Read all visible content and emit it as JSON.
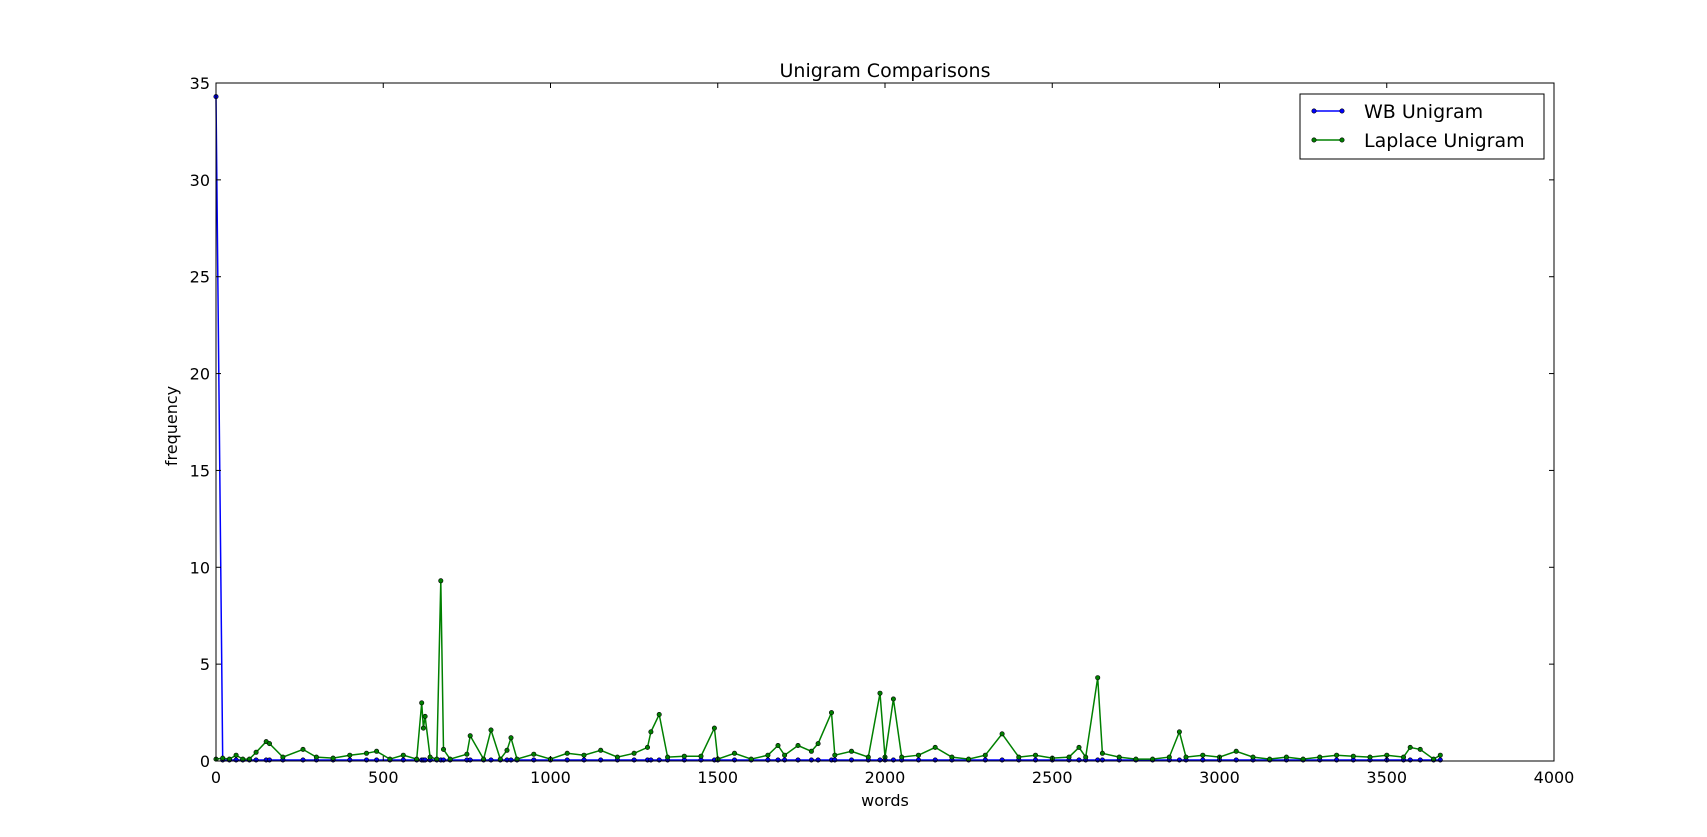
{
  "chart_data": {
    "type": "line",
    "title": "Unigram Comparisons",
    "xlabel": "words",
    "ylabel": "frequency",
    "xlim": [
      0,
      4000
    ],
    "ylim": [
      0,
      35
    ],
    "xticks": [
      0,
      500,
      1000,
      1500,
      2000,
      2500,
      3000,
      3500,
      4000
    ],
    "yticks": [
      0,
      5,
      10,
      15,
      20,
      25,
      30,
      35
    ],
    "grid": false,
    "legend_position": "top-right",
    "series": [
      {
        "name": "WB Unigram",
        "color": "#0000ff",
        "marker": "dot",
        "x": [
          0,
          20,
          40,
          60,
          80,
          100,
          120,
          150,
          160,
          200,
          260,
          300,
          350,
          400,
          450,
          480,
          520,
          560,
          600,
          615,
          620,
          625,
          640,
          660,
          672,
          680,
          700,
          750,
          760,
          800,
          822,
          850,
          870,
          882,
          900,
          950,
          1000,
          1050,
          1100,
          1150,
          1200,
          1250,
          1290,
          1300,
          1325,
          1350,
          1400,
          1450,
          1490,
          1500,
          1550,
          1600,
          1650,
          1680,
          1700,
          1740,
          1780,
          1800,
          1840,
          1850,
          1900,
          1950,
          1985,
          2000,
          2025,
          2050,
          2100,
          2150,
          2200,
          2250,
          2300,
          2350,
          2400,
          2450,
          2500,
          2550,
          2580,
          2600,
          2636,
          2650,
          2700,
          2750,
          2800,
          2850,
          2880,
          2900,
          2950,
          3000,
          3050,
          3100,
          3150,
          3200,
          3250,
          3300,
          3350,
          3400,
          3450,
          3500,
          3550,
          3570,
          3600,
          3640,
          3660
        ],
        "y": [
          34.3,
          0.05,
          0.05,
          0.05,
          0.05,
          0.05,
          0.05,
          0.05,
          0.05,
          0.05,
          0.05,
          0.05,
          0.05,
          0.05,
          0.05,
          0.05,
          0.05,
          0.05,
          0.05,
          0.05,
          0.05,
          0.05,
          0.05,
          0.05,
          0.05,
          0.05,
          0.05,
          0.05,
          0.05,
          0.05,
          0.05,
          0.05,
          0.05,
          0.05,
          0.05,
          0.05,
          0.05,
          0.05,
          0.05,
          0.05,
          0.05,
          0.05,
          0.05,
          0.05,
          0.05,
          0.05,
          0.05,
          0.05,
          0.05,
          0.05,
          0.05,
          0.05,
          0.05,
          0.05,
          0.05,
          0.05,
          0.05,
          0.05,
          0.05,
          0.05,
          0.05,
          0.05,
          0.05,
          0.05,
          0.05,
          0.05,
          0.05,
          0.05,
          0.05,
          0.05,
          0.05,
          0.05,
          0.05,
          0.05,
          0.05,
          0.05,
          0.05,
          0.05,
          0.05,
          0.05,
          0.05,
          0.05,
          0.05,
          0.05,
          0.05,
          0.05,
          0.05,
          0.05,
          0.05,
          0.05,
          0.05,
          0.05,
          0.05,
          0.05,
          0.05,
          0.05,
          0.05,
          0.05,
          0.05,
          0.05,
          0.05,
          0.05,
          0.05
        ]
      },
      {
        "name": "Laplace Unigram",
        "color": "#008000",
        "marker": "dot",
        "x": [
          0,
          20,
          40,
          60,
          80,
          100,
          120,
          150,
          160,
          200,
          260,
          300,
          350,
          400,
          450,
          480,
          520,
          560,
          600,
          615,
          620,
          625,
          640,
          660,
          672,
          680,
          700,
          750,
          760,
          800,
          822,
          850,
          870,
          882,
          900,
          950,
          1000,
          1050,
          1100,
          1150,
          1200,
          1250,
          1290,
          1300,
          1325,
          1350,
          1400,
          1450,
          1490,
          1500,
          1550,
          1600,
          1650,
          1680,
          1700,
          1740,
          1780,
          1800,
          1840,
          1850,
          1900,
          1950,
          1985,
          2000,
          2025,
          2050,
          2100,
          2150,
          2200,
          2250,
          2300,
          2350,
          2400,
          2450,
          2500,
          2550,
          2580,
          2600,
          2636,
          2650,
          2700,
          2750,
          2800,
          2850,
          2880,
          2900,
          2950,
          3000,
          3050,
          3100,
          3150,
          3200,
          3250,
          3300,
          3350,
          3400,
          3450,
          3500,
          3550,
          3570,
          3600,
          3640,
          3660
        ],
        "y": [
          0.1,
          0.15,
          0.1,
          0.3,
          0.1,
          0.1,
          0.45,
          1.0,
          0.9,
          0.2,
          0.6,
          0.2,
          0.15,
          0.3,
          0.4,
          0.5,
          0.1,
          0.3,
          0.1,
          3.0,
          1.7,
          2.3,
          0.2,
          0.1,
          9.3,
          0.6,
          0.1,
          0.35,
          1.3,
          0.1,
          1.6,
          0.1,
          0.55,
          1.2,
          0.1,
          0.35,
          0.1,
          0.4,
          0.3,
          0.55,
          0.2,
          0.4,
          0.7,
          1.5,
          2.4,
          0.2,
          0.25,
          0.25,
          1.7,
          0.1,
          0.4,
          0.1,
          0.3,
          0.8,
          0.3,
          0.8,
          0.5,
          0.9,
          2.5,
          0.3,
          0.5,
          0.2,
          3.5,
          0.2,
          3.2,
          0.2,
          0.3,
          0.7,
          0.2,
          0.1,
          0.3,
          1.4,
          0.2,
          0.3,
          0.15,
          0.2,
          0.7,
          0.2,
          4.3,
          0.4,
          0.2,
          0.1,
          0.1,
          0.2,
          1.5,
          0.2,
          0.3,
          0.2,
          0.5,
          0.2,
          0.1,
          0.2,
          0.1,
          0.2,
          0.3,
          0.25,
          0.2,
          0.3,
          0.2,
          0.7,
          0.6,
          0.1,
          0.3
        ]
      }
    ]
  }
}
